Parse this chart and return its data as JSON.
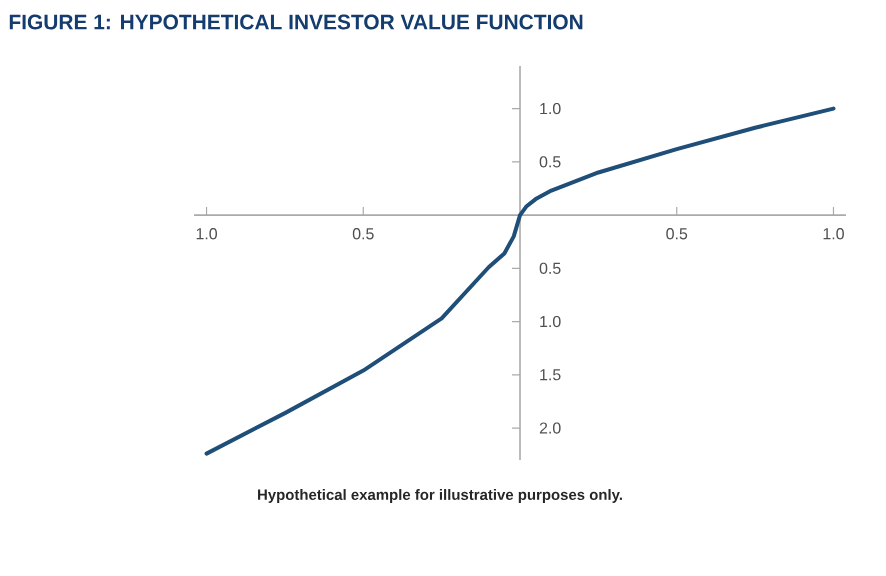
{
  "chart_data": {
    "type": "line",
    "title": "FIGURE 1: HYPOTHETICAL INVESTOR VALUE FUNCTION",
    "annotations": [
      "Hypothetical example for illustrative purposes only."
    ],
    "x": [
      -1,
      -0.75,
      -0.5,
      -0.25,
      -0.1,
      -0.05,
      -0.02,
      0,
      0.02,
      0.05,
      0.1,
      0.25,
      0.5,
      0.75,
      1
    ],
    "series": [
      {
        "color": "#1f4e79",
        "values": [
          -2.24,
          -1.86,
          -1.46,
          -0.97,
          -0.49,
          -0.36,
          -0.2,
          0,
          0.08,
          0.15,
          0.23,
          0.4,
          0.62,
          0.82,
          1.0
        ]
      }
    ],
    "xlim": [
      -1.04,
      1.04
    ],
    "ylim": [
      -2.3,
      1.4
    ],
    "xticks": [
      {
        "value": -1,
        "label": "1.0"
      },
      {
        "value": -0.5,
        "label": "0.5"
      },
      {
        "value": 0.5,
        "label": "0.5"
      },
      {
        "value": 1,
        "label": "1.0"
      }
    ],
    "yticks": [
      {
        "value": -2,
        "label": "2.0"
      },
      {
        "value": -1.5,
        "label": "1.5"
      },
      {
        "value": -1,
        "label": "1.0"
      },
      {
        "value": -0.5,
        "label": "0.5"
      },
      {
        "value": 0.5,
        "label": "0.5"
      },
      {
        "value": 1,
        "label": "1.0"
      }
    ],
    "line_style": "solid"
  }
}
